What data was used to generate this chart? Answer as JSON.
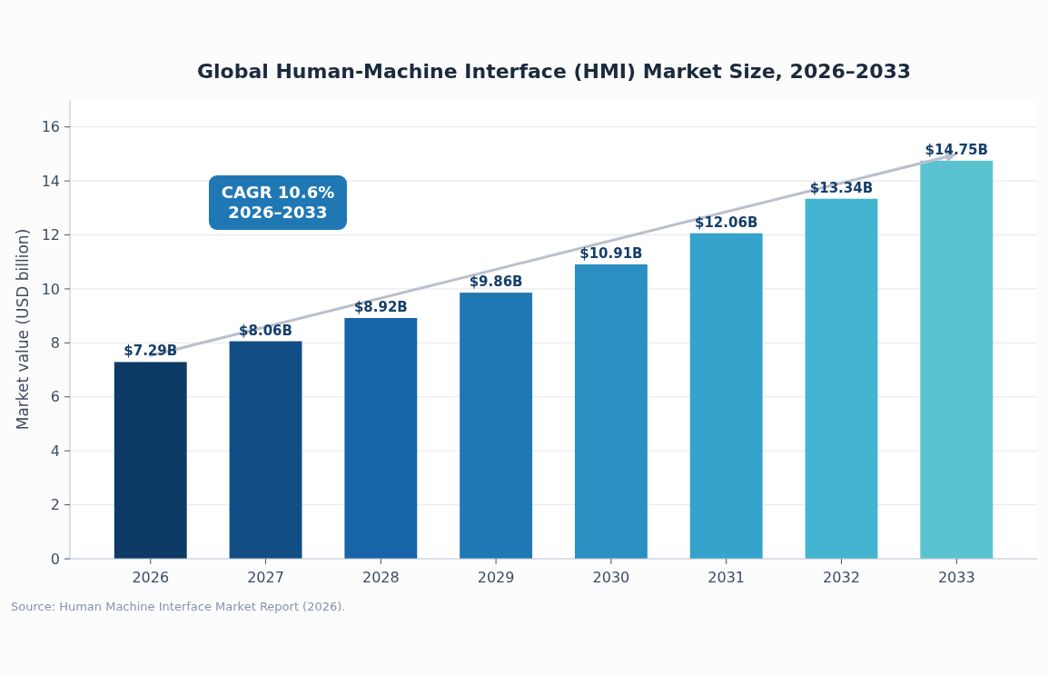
{
  "chart_data": {
    "type": "bar",
    "title": "Global Human-Machine Interface (HMI) Market Size, 2026–2033",
    "ylabel": "Market value (USD billion)",
    "categories": [
      "2026",
      "2027",
      "2028",
      "2029",
      "2030",
      "2031",
      "2032",
      "2033"
    ],
    "values": [
      7.29,
      8.06,
      8.92,
      9.86,
      10.91,
      12.06,
      13.34,
      14.75
    ],
    "colors": [
      "#0d3b66",
      "#124e85",
      "#1864a8",
      "#1f78b4",
      "#2b8fc2",
      "#35a3cb",
      "#44b5d0",
      "#5bc3d0"
    ],
    "value_labels": [
      "$7.29B",
      "$8.06B",
      "$8.92B",
      "$9.86B",
      "$10.91B",
      "$12.06B",
      "$13.34B",
      "$14.75B"
    ],
    "ylim": [
      0,
      17
    ],
    "yticks": [
      0,
      2,
      4,
      6,
      8,
      10,
      12,
      14,
      16
    ],
    "grid": "y",
    "annotations": [
      "CAGR 10.6%\n2026–2033",
      "Source: Human Machine Interface Market Report (2026)."
    ]
  }
}
